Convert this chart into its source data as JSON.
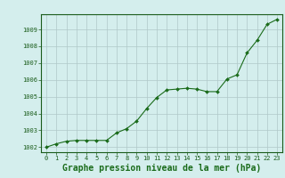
{
  "x": [
    0,
    1,
    2,
    3,
    4,
    5,
    6,
    7,
    8,
    9,
    10,
    11,
    12,
    13,
    14,
    15,
    16,
    17,
    18,
    19,
    20,
    21,
    22,
    23
  ],
  "y": [
    1002.0,
    1002.2,
    1002.35,
    1002.4,
    1002.4,
    1002.4,
    1002.4,
    1002.85,
    1003.1,
    1003.55,
    1004.3,
    1004.95,
    1005.4,
    1005.45,
    1005.5,
    1005.45,
    1005.3,
    1005.3,
    1006.05,
    1006.3,
    1007.6,
    1008.35,
    1009.3,
    1009.6
  ],
  "ylim": [
    1001.7,
    1009.9
  ],
  "yticks": [
    1002,
    1003,
    1004,
    1005,
    1006,
    1007,
    1008,
    1009
  ],
  "xticks": [
    0,
    1,
    2,
    3,
    4,
    5,
    6,
    7,
    8,
    9,
    10,
    11,
    12,
    13,
    14,
    15,
    16,
    17,
    18,
    19,
    20,
    21,
    22,
    23
  ],
  "line_color": "#1a6b1a",
  "marker_color": "#1a6b1a",
  "bg_color": "#d4eeed",
  "grid_color": "#b0c8c8",
  "xlabel": "Graphe pression niveau de la mer (hPa)",
  "xlabel_color": "#1a6b1a",
  "tick_color": "#1a5c1a",
  "tick_fontsize": 5.0,
  "xlabel_fontsize": 7.0,
  "marker_size": 2.0,
  "line_width": 0.8
}
